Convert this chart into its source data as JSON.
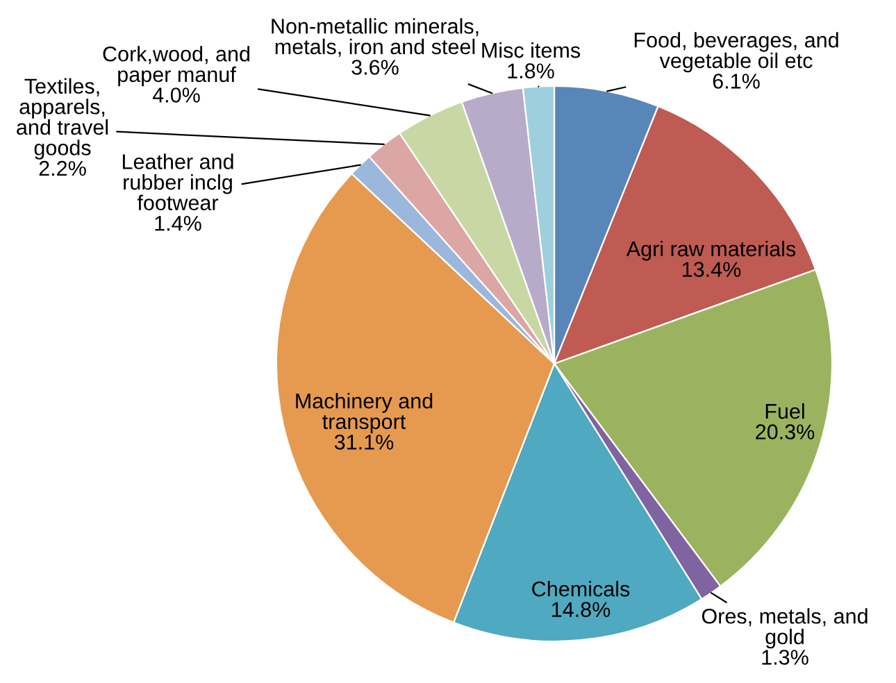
{
  "chart_data": {
    "type": "pie",
    "categories": [
      "Food, beverages, and\nvegetable oil etc",
      "Agri raw materials",
      "Fuel",
      "Ores, metals, and\ngold",
      "Chemicals",
      "Machinery and\ntransport",
      "Leather and\nrubber inclg\nfootwear",
      "Textiles,\napparels,\nand travel\ngoods",
      "Cork,wood, and\npaper manuf",
      "Non-metallic minerals,\nmetals, iron and steel",
      "Misc items"
    ],
    "values": [
      6.1,
      13.4,
      20.3,
      1.3,
      14.8,
      31.1,
      1.4,
      2.2,
      4.0,
      3.6,
      1.8
    ],
    "value_labels": [
      "6.1%",
      "13.4%",
      "20.3%",
      "1.3%",
      "14.8%",
      "31.1%",
      "1.4%",
      "2.2%",
      "4.0%",
      "3.6%",
      "1.8%"
    ],
    "colors": [
      "#5886b8",
      "#bf5b52",
      "#9bb35e",
      "#8064a2",
      "#4fa9c0",
      "#e59a50",
      "#9bb7dc",
      "#dca6a4",
      "#c8d8a4",
      "#b8abc9",
      "#9dd0dc"
    ]
  }
}
